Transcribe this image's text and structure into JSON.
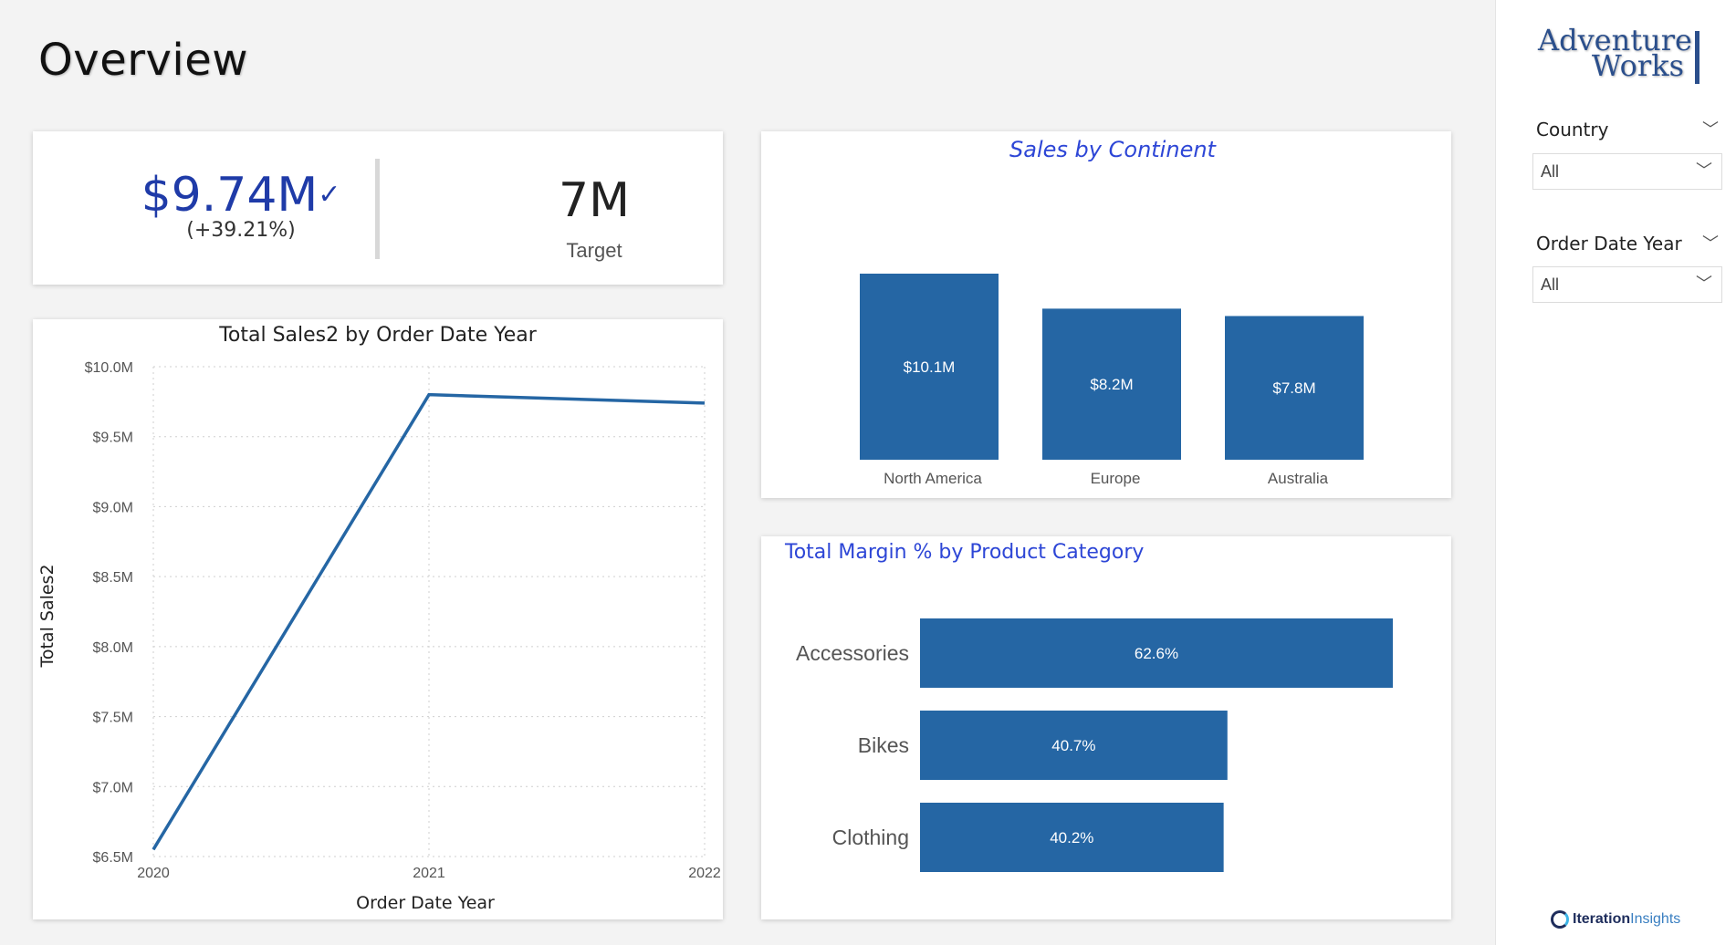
{
  "page": {
    "title": "Overview"
  },
  "kpi": {
    "value": "$9.74M",
    "delta": "(+39.21%)",
    "target_value": "7M",
    "target_label": "Target",
    "status_icon": "check-icon"
  },
  "colors": {
    "bar": "#2566a4",
    "line": "#2566a4",
    "kpi_value": "#1f3ba8",
    "title_accent": "#2d46d6",
    "logo": "#2b4f8c"
  },
  "chart_data": [
    {
      "type": "line",
      "title": "Total Sales2 by Order Date Year",
      "xlabel": "Order Date Year",
      "ylabel": "Total Sales2",
      "x": [
        "2020",
        "2021",
        "2022"
      ],
      "series": [
        {
          "values": [
            6.55,
            9.8,
            9.74
          ]
        }
      ],
      "ylim": [
        6.5,
        10.0
      ],
      "yticks": [
        "$6.5M",
        "$7.0M",
        "$7.5M",
        "$8.0M",
        "$8.5M",
        "$9.0M",
        "$9.5M",
        "$10.0M"
      ],
      "ytick_values": [
        6.5,
        7.0,
        7.5,
        8.0,
        8.5,
        9.0,
        9.5,
        10.0
      ],
      "grid": true
    },
    {
      "type": "bar",
      "title": "Sales by Continent",
      "categories": [
        "North America",
        "Europe",
        "Australia"
      ],
      "values": [
        10.1,
        8.2,
        7.8
      ],
      "data_labels": [
        "$10.1M",
        "$8.2M",
        "$7.8M"
      ],
      "ylim": [
        0,
        10.1
      ]
    },
    {
      "type": "bar",
      "orientation": "horizontal",
      "title": "Total Margin % by Product Category",
      "categories": [
        "Accessories",
        "Bikes",
        "Clothing"
      ],
      "values": [
        62.6,
        40.7,
        40.2
      ],
      "data_labels": [
        "62.6%",
        "40.7%",
        "40.2%"
      ],
      "xlim": [
        0,
        62.6
      ]
    }
  ],
  "filters": [
    {
      "title": "Country",
      "value": "All"
    },
    {
      "title": "Order Date Year",
      "value": "All"
    }
  ],
  "brand": {
    "logo_line1": "Adventure",
    "logo_line2": "Works",
    "footer_part1": "Iteration",
    "footer_part2": "Insights"
  }
}
